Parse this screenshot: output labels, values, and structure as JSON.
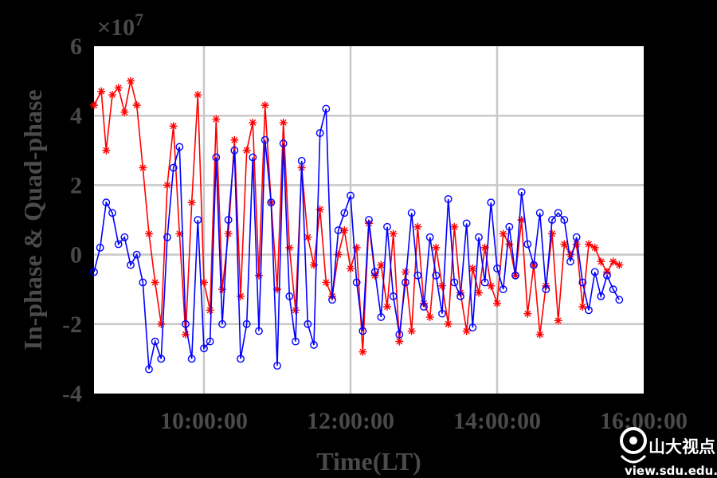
{
  "chart_data": {
    "type": "line",
    "xlabel": "Time(LT)",
    "ylabel": "In-phase & Quad-phase",
    "y_multiplier": "×10",
    "y_multiplier_exponent": "7",
    "xlim": [
      "08:30:00",
      "16:00:00"
    ],
    "ylim": [
      -4,
      6
    ],
    "x_ticks": [
      "10:00:00",
      "12:00:00",
      "14:00:00",
      "16:00:00"
    ],
    "y_ticks": [
      "-4",
      "-2",
      "0",
      "2",
      "4",
      "6"
    ],
    "grid": true,
    "colors": {
      "red_series": "#ff0000",
      "blue_series": "#0000ff",
      "grid": "#c8c8c8",
      "plot_bg": "#ffffff"
    },
    "series": [
      {
        "color": "red",
        "marker": "asterisk",
        "x": [
          "08:30",
          "08:36",
          "08:40",
          "08:45",
          "08:50",
          "08:55",
          "09:00",
          "09:05",
          "09:10",
          "09:15",
          "09:20",
          "09:25",
          "09:30",
          "09:35",
          "09:40",
          "09:45",
          "09:50",
          "09:55",
          "10:00",
          "10:05",
          "10:10",
          "10:15",
          "10:20",
          "10:25",
          "10:30",
          "10:35",
          "10:40",
          "10:45",
          "10:50",
          "10:55",
          "11:00",
          "11:05",
          "11:10",
          "11:15",
          "11:20",
          "11:25",
          "11:30",
          "11:35",
          "11:40",
          "11:45",
          "11:50",
          "11:55",
          "12:00",
          "12:05",
          "12:10",
          "12:15",
          "12:20",
          "12:25",
          "12:30",
          "12:35",
          "12:40",
          "12:45",
          "12:50",
          "12:55",
          "13:00",
          "13:05",
          "13:10",
          "13:15",
          "13:20",
          "13:25",
          "13:30",
          "13:35",
          "13:40",
          "13:45",
          "13:50",
          "13:55",
          "14:00",
          "14:05",
          "14:10",
          "14:15",
          "14:20",
          "14:25",
          "14:30",
          "14:35",
          "14:40",
          "14:45",
          "14:50",
          "14:55",
          "15:00",
          "15:05",
          "15:10",
          "15:15",
          "15:20",
          "15:25",
          "15:30",
          "15:35",
          "15:40"
        ],
        "y": [
          4.3,
          4.7,
          3.0,
          4.6,
          4.8,
          4.1,
          5.0,
          4.3,
          2.5,
          0.6,
          -0.8,
          -2.0,
          2.0,
          3.7,
          0.6,
          -2.3,
          1.5,
          4.6,
          -0.8,
          -1.6,
          3.9,
          -1.0,
          0.6,
          3.3,
          -1.2,
          3.0,
          3.8,
          -0.6,
          4.3,
          1.5,
          -1.0,
          3.8,
          0.2,
          -1.6,
          2.5,
          0.5,
          -0.3,
          1.3,
          -0.8,
          -1.2,
          0.0,
          0.7,
          -0.4,
          0.2,
          -2.8,
          0.9,
          -0.6,
          -0.3,
          -1.5,
          0.6,
          -2.5,
          -0.5,
          -2.2,
          0.8,
          -1.4,
          -1.8,
          0.2,
          -0.9,
          -2.0,
          0.8,
          -1.1,
          -2.2,
          -0.4,
          -1.1,
          0.2,
          -0.9,
          -1.4,
          0.6,
          0.3,
          -0.6,
          1.0,
          -1.7,
          -0.3,
          -2.3,
          -0.9,
          0.6,
          -1.9,
          0.3,
          0.0,
          0.3,
          -1.5,
          0.3,
          0.2,
          -0.2,
          -0.5,
          -0.2,
          -0.3
        ]
      },
      {
        "color": "blue",
        "marker": "circle",
        "x": [
          "08:30",
          "08:35",
          "08:40",
          "08:45",
          "08:50",
          "08:55",
          "09:00",
          "09:05",
          "09:10",
          "09:15",
          "09:20",
          "09:25",
          "09:30",
          "09:35",
          "09:40",
          "09:45",
          "09:50",
          "09:55",
          "10:00",
          "10:05",
          "10:10",
          "10:15",
          "10:20",
          "10:25",
          "10:30",
          "10:35",
          "10:40",
          "10:45",
          "10:50",
          "10:55",
          "11:00",
          "11:05",
          "11:10",
          "11:15",
          "11:20",
          "11:25",
          "11:30",
          "11:35",
          "11:40",
          "11:45",
          "11:50",
          "11:55",
          "12:00",
          "12:05",
          "12:10",
          "12:15",
          "12:20",
          "12:25",
          "12:30",
          "12:35",
          "12:40",
          "12:45",
          "12:50",
          "12:55",
          "13:00",
          "13:05",
          "13:10",
          "13:15",
          "13:20",
          "13:25",
          "13:30",
          "13:35",
          "13:40",
          "13:45",
          "13:50",
          "13:55",
          "14:00",
          "14:05",
          "14:10",
          "14:15",
          "14:20",
          "14:25",
          "14:30",
          "14:35",
          "14:40",
          "14:45",
          "14:50",
          "14:55",
          "15:00",
          "15:05",
          "15:10",
          "15:15",
          "15:20",
          "15:25",
          "15:30",
          "15:35",
          "15:40"
        ],
        "y": [
          -0.5,
          0.2,
          1.5,
          1.2,
          0.3,
          0.5,
          -0.3,
          0.0,
          -0.8,
          -3.3,
          -2.5,
          -3.0,
          0.5,
          2.5,
          3.1,
          -2.0,
          -3.0,
          1.0,
          -2.7,
          -2.5,
          2.8,
          -2.0,
          1.0,
          3.0,
          -3.0,
          -2.0,
          2.8,
          -2.2,
          3.3,
          1.5,
          -3.2,
          3.2,
          -1.2,
          -2.5,
          2.7,
          -2.0,
          -2.6,
          3.5,
          4.2,
          -1.3,
          0.7,
          1.2,
          1.7,
          -0.8,
          -2.2,
          1.0,
          -0.5,
          -1.8,
          0.8,
          -1.2,
          -2.3,
          -0.8,
          1.2,
          -0.6,
          -1.5,
          0.5,
          -0.6,
          -1.7,
          1.6,
          -0.8,
          -1.2,
          0.9,
          -2.1,
          0.5,
          -0.8,
          1.5,
          -0.4,
          -1.0,
          0.8,
          -0.6,
          1.8,
          0.3,
          -0.3,
          1.2,
          -1.0,
          1.0,
          1.2,
          1.0,
          -0.2,
          0.5,
          -0.8,
          -1.6,
          -0.5,
          -1.2,
          -0.6,
          -1.0,
          -1.3
        ]
      }
    ]
  },
  "watermark": {
    "brand": "山大视点",
    "url": "view.sdu.edu.cn"
  }
}
